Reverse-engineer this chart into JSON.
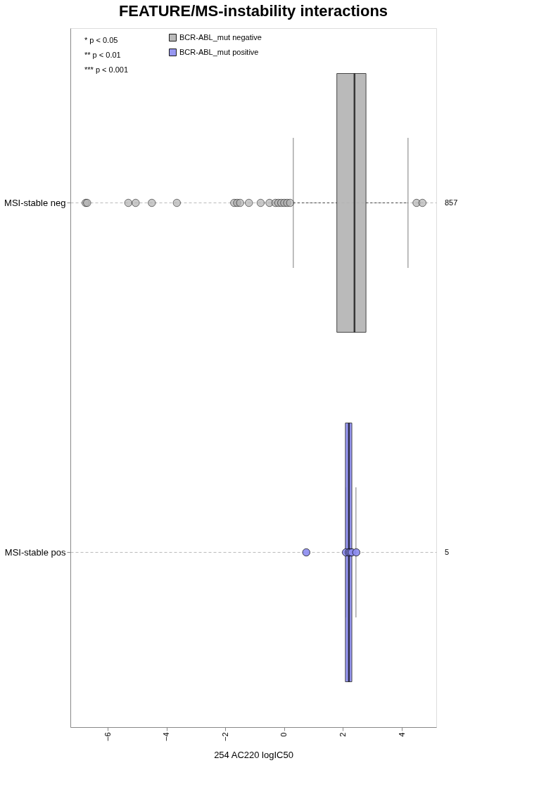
{
  "chart_data": {
    "type": "box",
    "title": "FEATURE/MS-instability interactions",
    "xlabel": "254 AC220 logIC50",
    "orientation": "horizontal",
    "categories": [
      "MSI-stable neg",
      "MSI-stable pos"
    ],
    "y2_categories": [
      "857",
      "5"
    ],
    "xlim": [
      -7.27,
      5.17
    ],
    "xticks": [
      -6,
      -4,
      -2,
      0,
      2,
      4
    ],
    "grid": "y",
    "legend": "top left",
    "marker": "circle",
    "series": [
      {
        "name": "BCR-ABL_mut negative",
        "color": "#b3b3b3",
        "type": "box",
        "boxes": [
          {
            "low": 0.31,
            "q1": 1.79,
            "median": 2.39,
            "q3": 2.78,
            "high": 4.21,
            "outliers": [
              -6.75,
              -6.7,
              -5.3,
              -5.05,
              -4.5,
              -3.65,
              -1.7,
              -1.6,
              -1.5,
              -1.2,
              -0.8,
              -0.5,
              -0.3,
              -0.2,
              -0.1,
              0.0,
              0.1,
              0.2,
              4.5,
              4.7
            ]
          },
          null
        ]
      },
      {
        "name": "BCR-ABL_mut positive",
        "color": "#8c8cf0",
        "type": "box",
        "boxes": [
          null,
          {
            "low": 2.1,
            "q1": 2.08,
            "median": 2.2,
            "q3": 2.3,
            "high": 2.44
          }
        ]
      },
      {
        "type": "scatter",
        "color": "#8c8cf0",
        "x": [
          "MSI-stable pos",
          "MSI-stable pos",
          "MSI-stable pos",
          "MSI-stable pos",
          "MSI-stable pos",
          "MSI-stable pos"
        ],
        "values": [
          0.75,
          2.1,
          2.2,
          2.25,
          2.3,
          2.45
        ]
      }
    ],
    "annotations": [
      "* p < 0.05",
      "** p < 0.01",
      "*** p < 0.001"
    ]
  }
}
